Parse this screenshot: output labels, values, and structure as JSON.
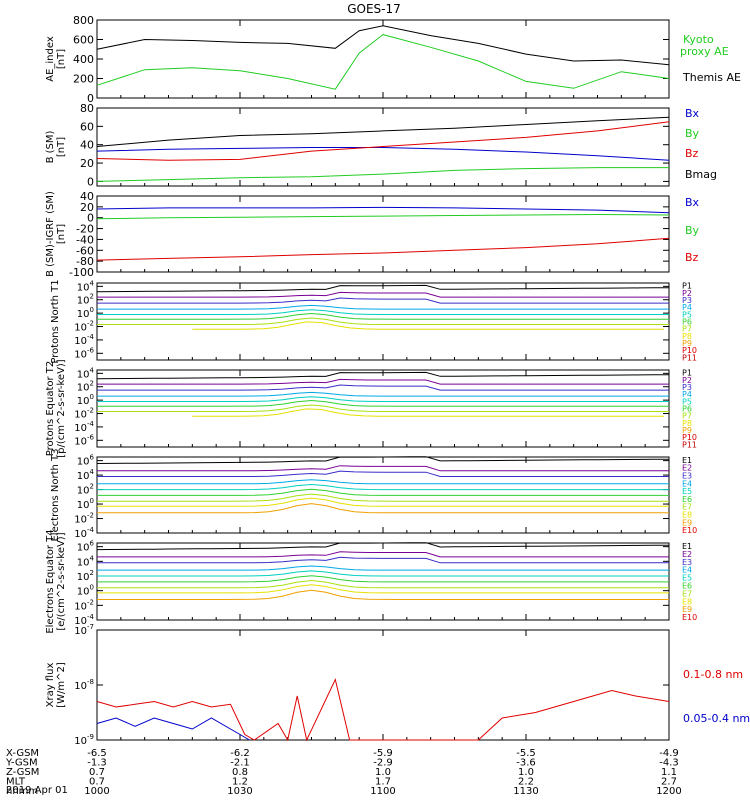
{
  "title": "GOES-17",
  "date": "2019 Apr 01",
  "colors": {
    "black": "#000000",
    "red": "#e00000",
    "green": "#22cc22",
    "blue": "#0000cc",
    "purple": "#7a0096",
    "violet": "#3a2cc8",
    "cyan": "#00a8e8",
    "aqua": "#00d0c0",
    "lime": "#30d030",
    "yg": "#a8e010",
    "yellow": "#e8e000",
    "orange": "#f0a000",
    "darkred": "#c00000"
  },
  "x_ticks": [
    "1000",
    "1030",
    "1100",
    "1130",
    "1200"
  ],
  "footer": {
    "row_labels": [
      "X-GSM",
      "Y-GSM",
      "Z-GSM",
      "MLT",
      "hhmm"
    ],
    "values": [
      [
        "-6.5",
        "-6.2",
        "-5.9",
        "-5.5",
        "-4.9"
      ],
      [
        "-1.3",
        "-2.1",
        "-2.9",
        "-3.6",
        "-4.3"
      ],
      [
        "0.7",
        "0.8",
        "1.0",
        "1.0",
        "1.1"
      ],
      [
        "0.7",
        "1.2",
        "1.7",
        "2.2",
        "2.7"
      ],
      [
        "1000",
        "1030",
        "1100",
        "1130",
        "1200"
      ]
    ]
  },
  "chart_data": [
    {
      "type": "line",
      "ylabel": "AE_index [nT]",
      "ylim": [
        0,
        800
      ],
      "yticks": [
        "0",
        "200",
        "400",
        "600",
        "800"
      ],
      "x": [
        0,
        10,
        20,
        30,
        40,
        50,
        55,
        60,
        70,
        80,
        90,
        100,
        110,
        120
      ],
      "series": [
        {
          "name": "Themis AE",
          "color": "black",
          "values": [
            500,
            600,
            590,
            570,
            560,
            510,
            690,
            740,
            640,
            560,
            450,
            380,
            390,
            340
          ]
        },
        {
          "name": "Kyoto proxy AE",
          "color": "green",
          "values": [
            130,
            290,
            310,
            280,
            200,
            90,
            460,
            650,
            520,
            380,
            170,
            100,
            270,
            200
          ]
        }
      ],
      "legend": [
        "Kyoto proxy AE",
        "Themis AE"
      ]
    },
    {
      "type": "line",
      "ylabel": "B (SM) [nT]",
      "ylim": [
        -5,
        80
      ],
      "yticks": [
        "0",
        "20",
        "40",
        "60",
        "80"
      ],
      "x": [
        0,
        15,
        30,
        45,
        60,
        75,
        90,
        105,
        120
      ],
      "series": [
        {
          "name": "Bx",
          "color": "blue",
          "values": [
            33,
            35,
            36,
            37,
            37,
            35,
            32,
            28,
            23
          ]
        },
        {
          "name": "By",
          "color": "green",
          "values": [
            0,
            2,
            4,
            5,
            8,
            12,
            14,
            15,
            15
          ]
        },
        {
          "name": "Bz",
          "color": "red",
          "values": [
            25,
            23,
            24,
            33,
            38,
            43,
            48,
            55,
            65
          ]
        },
        {
          "name": "Bmag",
          "color": "black",
          "values": [
            38,
            45,
            50,
            52,
            55,
            58,
            62,
            66,
            70
          ]
        }
      ]
    },
    {
      "type": "line",
      "ylabel": "B (SM)-IGRF (SM) [nT]",
      "ylim": [
        -100,
        40
      ],
      "yticks": [
        "40",
        "20",
        "0",
        "-20",
        "-40",
        "-60",
        "-80",
        "-100"
      ],
      "x": [
        0,
        15,
        30,
        45,
        60,
        75,
        90,
        105,
        120
      ],
      "series": [
        {
          "name": "Bx",
          "color": "blue",
          "values": [
            16,
            18,
            18,
            18,
            19,
            18,
            16,
            14,
            9
          ]
        },
        {
          "name": "By",
          "color": "green",
          "values": [
            -2,
            0,
            1,
            2,
            3,
            4,
            5,
            6,
            5
          ]
        },
        {
          "name": "Bz",
          "color": "red",
          "values": [
            -78,
            -75,
            -72,
            -68,
            -65,
            -60,
            -55,
            -48,
            -38
          ]
        }
      ]
    },
    {
      "type": "line",
      "ylabel": "Protons North T1",
      "log": true,
      "ylim": [
        -7,
        4.5
      ],
      "yticks": [
        "10^4",
        "10^2",
        "10^0",
        "10^-2",
        "10^-4",
        "10^-6"
      ],
      "legend": [
        "P1",
        "P2",
        "P3",
        "P4",
        "P5",
        "P6",
        "P7",
        "P8",
        "P9",
        "P10",
        "P11"
      ]
    },
    {
      "type": "line",
      "ylabel": "Protons Equator T2 [p/(cm^2-s-sr-keV)]",
      "log": true,
      "ylim": [
        -7,
        4.5
      ],
      "yticks": [
        "10^4",
        "10^2",
        "10^0",
        "10^-2",
        "10^-4",
        "10^-6"
      ],
      "legend": [
        "P1",
        "P2",
        "P3",
        "P4",
        "P5",
        "P6",
        "P7",
        "P8",
        "P9",
        "P10",
        "P11"
      ]
    },
    {
      "type": "line",
      "ylabel": "Electrons North T3",
      "log": true,
      "ylim": [
        -4,
        6.5
      ],
      "yticks": [
        "10^6",
        "10^4",
        "10^2",
        "10^0",
        "10^-2",
        "10^-4"
      ],
      "legend": [
        "E1",
        "E2",
        "E3",
        "E4",
        "E5",
        "E6",
        "E7",
        "E8",
        "E9",
        "E10"
      ]
    },
    {
      "type": "line",
      "ylabel": "Electrons Equator T4 [e/(cm^2-s-sr-keV)]",
      "log": true,
      "ylim": [
        -4,
        6.5
      ],
      "yticks": [
        "10^6",
        "10^4",
        "10^2",
        "10^0",
        "10^-2",
        "10^-4"
      ],
      "legend": [
        "E1",
        "E2",
        "E3",
        "E4",
        "E5",
        "E6",
        "E7",
        "E8",
        "E9",
        "E10"
      ]
    },
    {
      "type": "line",
      "ylabel": "Xray flux [W/m^2]",
      "log": true,
      "ylim": [
        -9,
        -7
      ],
      "yticks": [
        "10^-7",
        "10^-8",
        "10^-9"
      ],
      "series": [
        {
          "name": "0.1-0.8 nm",
          "color": "red"
        },
        {
          "name": "0.05-0.4 nm",
          "color": "blue"
        }
      ],
      "legend": [
        "0.1-0.8 nm",
        "0.05-0.4 nm"
      ]
    }
  ]
}
